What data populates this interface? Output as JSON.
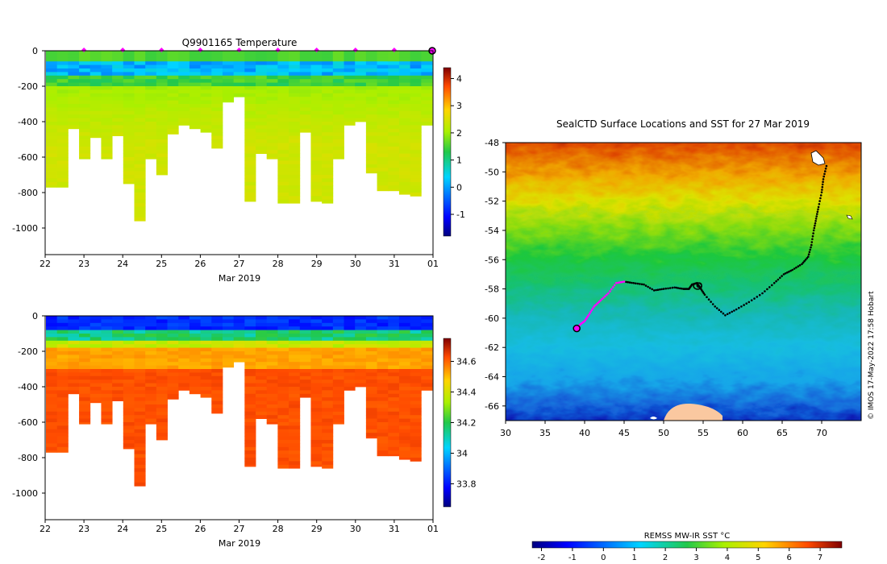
{
  "chart_data": [
    {
      "type": "heatmap",
      "title": "Q9901165  Temperature",
      "xlabel": "Mar 2019",
      "ylabel": "",
      "x_ticks": [
        "22",
        "23",
        "24",
        "25",
        "26",
        "27",
        "28",
        "29",
        "30",
        "31",
        "01"
      ],
      "y_ticks": [
        "0",
        "-200",
        "-400",
        "-600",
        "-800",
        "-1000"
      ],
      "ylim": [
        -1150,
        0
      ],
      "colorbar": {
        "ticks": [
          "4",
          "3",
          "2",
          "1",
          "0",
          "-1"
        ],
        "range": [
          -1.8,
          4.4
        ]
      },
      "profile_depths": [
        770,
        770,
        440,
        610,
        490,
        610,
        480,
        750,
        960,
        610,
        700,
        470,
        420,
        440,
        460,
        550,
        290,
        260,
        850,
        580,
        610,
        860,
        860,
        460,
        850,
        860,
        610,
        420,
        400,
        690,
        790,
        790,
        810,
        820,
        420
      ],
      "surface_markers": [
        "23",
        "24",
        "25",
        "26",
        "27",
        "28",
        "29",
        "30",
        "31"
      ]
    },
    {
      "type": "heatmap",
      "title": "",
      "xlabel": "Mar 2019",
      "ylabel": "",
      "x_ticks": [
        "22",
        "23",
        "24",
        "25",
        "26",
        "27",
        "28",
        "29",
        "30",
        "31",
        "01"
      ],
      "y_ticks": [
        "0",
        "-200",
        "-400",
        "-600",
        "-800",
        "-1000"
      ],
      "ylim": [
        -1150,
        0
      ],
      "colorbar": {
        "ticks": [
          "34.6",
          "34.4",
          "34.2",
          "34",
          "33.8"
        ],
        "range": [
          33.65,
          34.75
        ]
      },
      "profile_depths": [
        770,
        770,
        440,
        610,
        490,
        610,
        480,
        750,
        960,
        610,
        700,
        470,
        420,
        440,
        460,
        550,
        290,
        260,
        850,
        580,
        610,
        860,
        860,
        460,
        850,
        860,
        610,
        420,
        400,
        690,
        790,
        790,
        810,
        820,
        420
      ]
    },
    {
      "type": "heatmap",
      "title": "SealCTD Surface Locations and SST for 27 Mar 2019",
      "xlabel": "",
      "ylabel": "",
      "x_ticks": [
        "30",
        "35",
        "40",
        "45",
        "50",
        "55",
        "60",
        "65",
        "70"
      ],
      "y_ticks": [
        "-48",
        "-50",
        "-52",
        "-54",
        "-56",
        "-58",
        "-60",
        "-62",
        "-64",
        "-66"
      ],
      "xlim": [
        30,
        75
      ],
      "ylim": [
        -67,
        -48
      ],
      "track": [
        [
          70.6,
          -49.6
        ],
        [
          70.2,
          -50.5
        ],
        [
          70.0,
          -51.4
        ],
        [
          69.6,
          -52.4
        ],
        [
          69.3,
          -53.2
        ],
        [
          69.0,
          -54.0
        ],
        [
          68.7,
          -55.0
        ],
        [
          68.3,
          -55.8
        ],
        [
          67.5,
          -56.3
        ],
        [
          66.3,
          -56.7
        ],
        [
          65.2,
          -57.0
        ],
        [
          64.0,
          -57.6
        ],
        [
          62.5,
          -58.3
        ],
        [
          60.8,
          -58.9
        ],
        [
          59.2,
          -59.4
        ],
        [
          57.8,
          -59.8
        ],
        [
          56.5,
          -59.2
        ],
        [
          55.2,
          -58.4
        ],
        [
          54.6,
          -57.9
        ],
        [
          54.2,
          -57.6
        ],
        [
          53.6,
          -57.7
        ],
        [
          53.2,
          -58.0
        ],
        [
          52.5,
          -58.0
        ],
        [
          51.4,
          -57.9
        ],
        [
          50.0,
          -58.0
        ],
        [
          48.8,
          -58.1
        ],
        [
          47.5,
          -57.7
        ],
        [
          46.2,
          -57.6
        ],
        [
          45.0,
          -57.5
        ],
        [
          44.0,
          -57.6
        ],
        [
          43.0,
          -58.3
        ],
        [
          42.0,
          -58.8
        ],
        [
          41.2,
          -59.2
        ],
        [
          40.5,
          -59.8
        ],
        [
          40.0,
          -60.2
        ],
        [
          39.5,
          -60.4
        ],
        [
          39.0,
          -60.7
        ]
      ],
      "highlight_start_index": 28,
      "current_position": [
        39.0,
        -60.7
      ],
      "colorbar": {
        "label": "REMSS MW-IR SST °C",
        "ticks": [
          "-2",
          "-1",
          "0",
          "1",
          "2",
          "3",
          "4",
          "5",
          "6",
          "7"
        ],
        "range": [
          -2.3,
          7.7
        ]
      },
      "credit": "© IMOS 17-May-2022 17:58 Hobart"
    }
  ]
}
